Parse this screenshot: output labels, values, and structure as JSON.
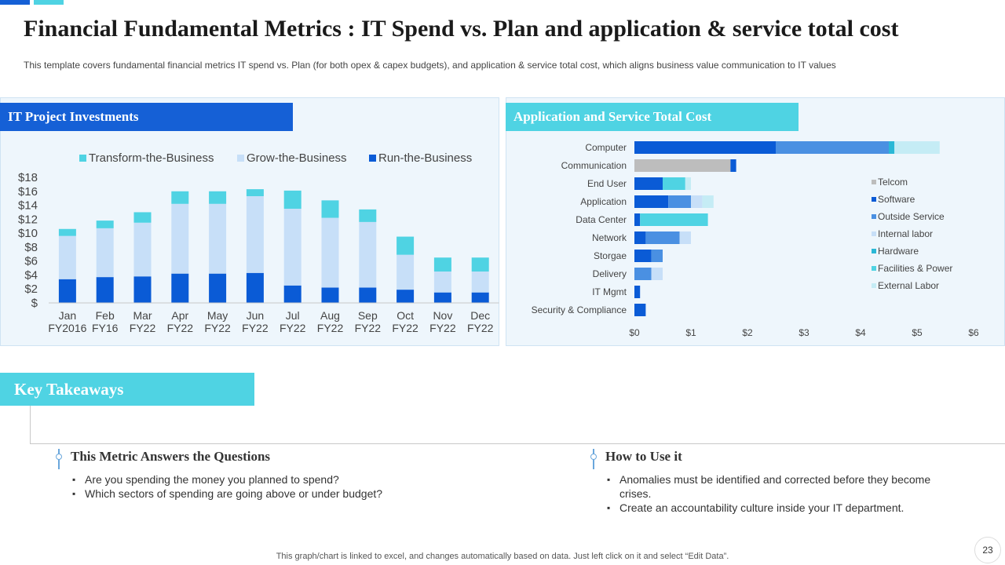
{
  "title": "Financial Fundamental Metrics : IT Spend vs. Plan and application & service total cost",
  "subtitle": "This template covers fundamental financial metrics IT spend vs. Plan (for both opex & capex budgets), and application & service total cost, which aligns business value communication to IT values",
  "left_panel": {
    "heading": "IT Project Investments"
  },
  "right_panel": {
    "heading": "Application and Service Total Cost"
  },
  "colors": {
    "accent_blue": "#1560d6",
    "accent_cyan": "#4fd3e3",
    "run": "#0a5bd6",
    "grow": "#c7dff8",
    "transform": "#4fd3e3",
    "telcom": "#bdbdbd",
    "software": "#0a5bd6",
    "outside_service": "#4a90e2",
    "internal_labor": "#c7dff8",
    "hardware": "#2ab8d6",
    "facilities": "#4fd3e3",
    "external_labor": "#c5ecf5"
  },
  "chart_data": [
    {
      "type": "bar",
      "stacked": true,
      "title": "IT Project Investments",
      "categories": [
        "Jan FY2016",
        "Feb FY16",
        "Mar FY22",
        "Apr FY22",
        "May FY22",
        "Jun FY22",
        "Jul FY22",
        "Aug FY22",
        "Sep FY22",
        "Oct FY22",
        "Nov FY22",
        "Dec FY22"
      ],
      "category_lines": [
        [
          "Jan",
          "FY2016"
        ],
        [
          "Feb",
          "FY16"
        ],
        [
          "Mar",
          "FY22"
        ],
        [
          "Apr",
          "FY22"
        ],
        [
          "May",
          "FY22"
        ],
        [
          "Jun",
          "FY22"
        ],
        [
          "Jul",
          "FY22"
        ],
        [
          "Aug",
          "FY22"
        ],
        [
          "Sep",
          "FY22"
        ],
        [
          "Oct",
          "FY22"
        ],
        [
          "Nov",
          "FY22"
        ],
        [
          "Dec",
          "FY22"
        ]
      ],
      "series": [
        {
          "name": "Run-the-Business",
          "color": "#0a5bd6",
          "values": [
            3.4,
            3.7,
            3.8,
            4.2,
            4.2,
            4.3,
            2.5,
            2.2,
            2.2,
            1.9,
            1.5,
            1.5
          ]
        },
        {
          "name": "Grow-the-Business",
          "color": "#c7dff8",
          "values": [
            6.2,
            7.0,
            7.7,
            10.0,
            10.0,
            11.0,
            11.0,
            10.0,
            9.4,
            5.0,
            3.0,
            3.0
          ]
        },
        {
          "name": "Transform-the-Business",
          "color": "#4fd3e3",
          "values": [
            1.0,
            1.1,
            1.5,
            1.8,
            1.8,
            1.0,
            2.6,
            2.5,
            1.8,
            2.6,
            2.0,
            2.0
          ]
        }
      ],
      "legend_order": [
        "Transform-the-Business",
        "Grow-the-Business",
        "Run-the-Business"
      ],
      "ylim": [
        0,
        18
      ],
      "yticks": [
        "$",
        "$2",
        "$4",
        "$6",
        "$8",
        "$10",
        "$12",
        "$14",
        "$16",
        "$18"
      ],
      "legend": "top"
    },
    {
      "type": "bar",
      "orientation": "horizontal",
      "stacked": true,
      "title": "Application and Service Total Cost",
      "categories": [
        "Computer",
        "Communication",
        "End User",
        "Application",
        "Data Center",
        "Network",
        "Storgae",
        "Delivery",
        "IT Mgmt",
        "Security & Compliance"
      ],
      "series": [
        {
          "name": "Telcom",
          "color": "#bdbdbd",
          "values": [
            0,
            1.7,
            0,
            0,
            0,
            0,
            0,
            0,
            0,
            0
          ]
        },
        {
          "name": "Software",
          "color": "#0a5bd6",
          "values": [
            2.5,
            0.1,
            0.5,
            0.6,
            0.1,
            0.2,
            0.3,
            0,
            0.1,
            0.2
          ]
        },
        {
          "name": "Outside Service",
          "color": "#4a90e2",
          "values": [
            2.0,
            0,
            0,
            0.4,
            0,
            0.6,
            0.2,
            0.3,
            0,
            0
          ]
        },
        {
          "name": "Internal labor",
          "color": "#c7dff8",
          "values": [
            0,
            0,
            0,
            0.2,
            0,
            0.2,
            0,
            0.2,
            0,
            0
          ]
        },
        {
          "name": "Hardware",
          "color": "#2ab8d6",
          "values": [
            0.1,
            0,
            0,
            0,
            0,
            0,
            0,
            0,
            0,
            0
          ]
        },
        {
          "name": "Facilities & Power",
          "color": "#4fd3e3",
          "values": [
            0,
            0,
            0.4,
            0,
            1.2,
            0,
            0,
            0,
            0,
            0
          ]
        },
        {
          "name": "External Labor",
          "color": "#c5ecf5",
          "values": [
            0.8,
            0,
            0.1,
            0.2,
            0,
            0,
            0,
            0,
            0,
            0
          ]
        }
      ],
      "xlim": [
        0,
        6
      ],
      "xticks": [
        "$0",
        "$1",
        "$2",
        "$3",
        "$4",
        "$5",
        "$6"
      ],
      "legend": "right"
    }
  ],
  "takeaways": {
    "heading": "Key Takeaways",
    "left": {
      "heading": "This Metric Answers the Questions",
      "items": [
        "Are you spending the money you planned to spend?",
        "Which sectors of spending are going above or under budget?"
      ]
    },
    "right": {
      "heading": "How to Use it",
      "items": [
        "Anomalies must be identified and corrected before they become crises.",
        "Create an accountability culture inside your IT department."
      ]
    }
  },
  "footer": "This graph/chart is linked to excel,  and changes automatically based on data. Just left click on it and select “Edit Data”.",
  "page_number": "23"
}
